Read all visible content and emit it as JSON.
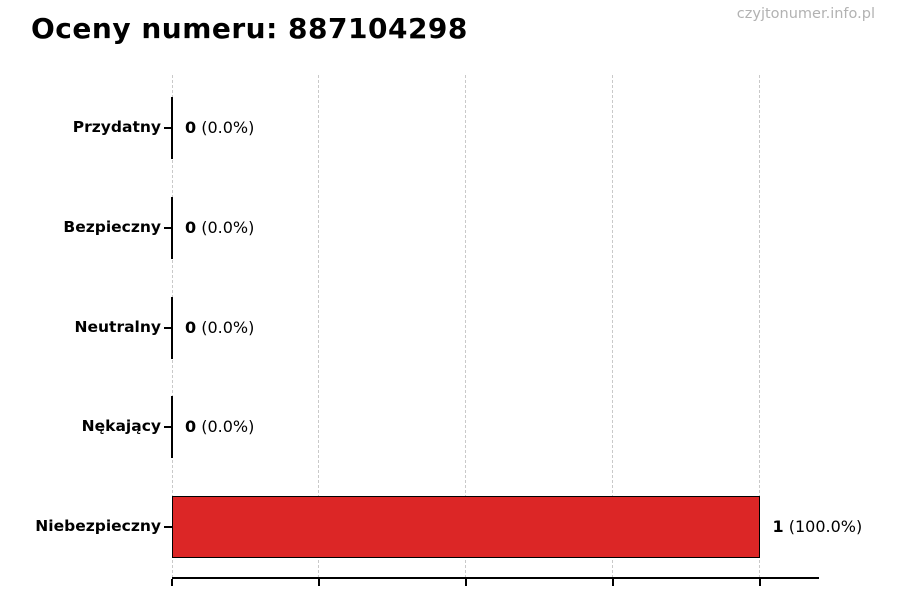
{
  "chart": {
    "title": "Oceny numeru: 887104298",
    "watermark": "czyjtonumer.info.pl"
  },
  "chart_data": {
    "type": "bar",
    "orientation": "horizontal",
    "title": "Oceny numeru: 887104298",
    "xlabel": "",
    "ylabel": "",
    "categories": [
      "Przydatny",
      "Bezpieczny",
      "Neutralny",
      "Nękający",
      "Niebezpieczny"
    ],
    "values": [
      0,
      0,
      0,
      0,
      1
    ],
    "counts": [
      "0",
      "0",
      "0",
      "0",
      "1"
    ],
    "percents": [
      "0.0%",
      "0.0%",
      "0.0%",
      "0.0%",
      "100.0%"
    ],
    "value_labels": [
      "0 (0.0%)",
      "0 (0.0%)",
      "0 (0.0%)",
      "0 (0.0%)",
      "1 (100.0%)"
    ],
    "xlim": [
      0,
      1.1
    ],
    "grid": "vertical-dashed",
    "gridline_values": [
      0,
      0.25,
      0.5,
      0.75,
      1.0
    ],
    "bar_color": "#dc2626",
    "bar_edge_color": "#000000",
    "grid_color": "#c9c9c9",
    "watermark_color": "#b2b2b2"
  }
}
